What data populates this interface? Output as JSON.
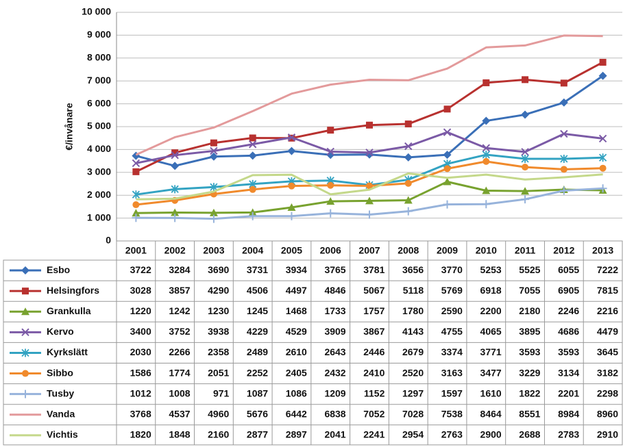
{
  "chart_data": {
    "type": "line",
    "y_label": "€/invånare",
    "categories": [
      "2001",
      "2002",
      "2003",
      "2004",
      "2005",
      "2006",
      "2007",
      "2008",
      "2009",
      "2010",
      "2011",
      "2012",
      "2013"
    ],
    "ylim": [
      0,
      10000
    ],
    "yticks": [
      0,
      {
        "value": 1000,
        "label": "1 000"
      },
      {
        "value": 2000,
        "label": "2 000"
      },
      {
        "value": 3000,
        "label": "3 000"
      },
      {
        "value": 4000,
        "label": "4 000"
      },
      {
        "value": 5000,
        "label": "5 000"
      },
      {
        "value": 6000,
        "label": "6 000"
      },
      {
        "value": 7000,
        "label": "7 000"
      },
      {
        "value": 8000,
        "label": "8 000"
      },
      {
        "value": 9000,
        "label": "9 000"
      },
      {
        "value": 10000,
        "label": "10 000"
      }
    ],
    "grid": true,
    "series": [
      {
        "name": "Esbo",
        "color": "#3a6fb7",
        "marker": "diamond",
        "values": [
          3722,
          3284,
          3690,
          3731,
          3934,
          3765,
          3781,
          3656,
          3770,
          5253,
          5525,
          6055,
          7222
        ]
      },
      {
        "name": "Helsingfors",
        "color": "#b8312f",
        "marker": "square",
        "values": [
          3028,
          3857,
          4290,
          4506,
          4497,
          4846,
          5067,
          5118,
          5769,
          6918,
          7055,
          6905,
          7815
        ]
      },
      {
        "name": "Grankulla",
        "color": "#78a22f",
        "marker": "triangle",
        "values": [
          1220,
          1242,
          1230,
          1245,
          1468,
          1733,
          1757,
          1780,
          2590,
          2200,
          2180,
          2246,
          2216
        ]
      },
      {
        "name": "Kervo",
        "color": "#7b5aa6",
        "marker": "x",
        "values": [
          3400,
          3752,
          3938,
          4229,
          4529,
          3909,
          3867,
          4143,
          4755,
          4065,
          3895,
          4686,
          4479
        ]
      },
      {
        "name": "Kyrkslätt",
        "color": "#33a3c2",
        "marker": "star",
        "values": [
          2030,
          2266,
          2358,
          2489,
          2610,
          2643,
          2446,
          2679,
          3374,
          3771,
          3593,
          3593,
          3645
        ]
      },
      {
        "name": "Sibbo",
        "color": "#f08a2c",
        "marker": "circle",
        "values": [
          1586,
          1774,
          2051,
          2252,
          2405,
          2432,
          2410,
          2520,
          3163,
          3477,
          3229,
          3134,
          3182
        ]
      },
      {
        "name": "Tusby",
        "color": "#97b3db",
        "marker": "plus",
        "values": [
          1012,
          1008,
          971,
          1087,
          1086,
          1209,
          1152,
          1297,
          1597,
          1610,
          1822,
          2201,
          2298
        ]
      },
      {
        "name": "Vanda",
        "color": "#e39a9b",
        "marker": "none",
        "values": [
          3768,
          4537,
          4960,
          5676,
          6442,
          6838,
          7052,
          7028,
          7538,
          8464,
          8551,
          8984,
          8960
        ]
      },
      {
        "name": "Vichtis",
        "color": "#c4d88a",
        "marker": "none",
        "values": [
          1820,
          1848,
          2160,
          2877,
          2897,
          2041,
          2241,
          2954,
          2763,
          2900,
          2688,
          2783,
          2910
        ]
      }
    ]
  }
}
